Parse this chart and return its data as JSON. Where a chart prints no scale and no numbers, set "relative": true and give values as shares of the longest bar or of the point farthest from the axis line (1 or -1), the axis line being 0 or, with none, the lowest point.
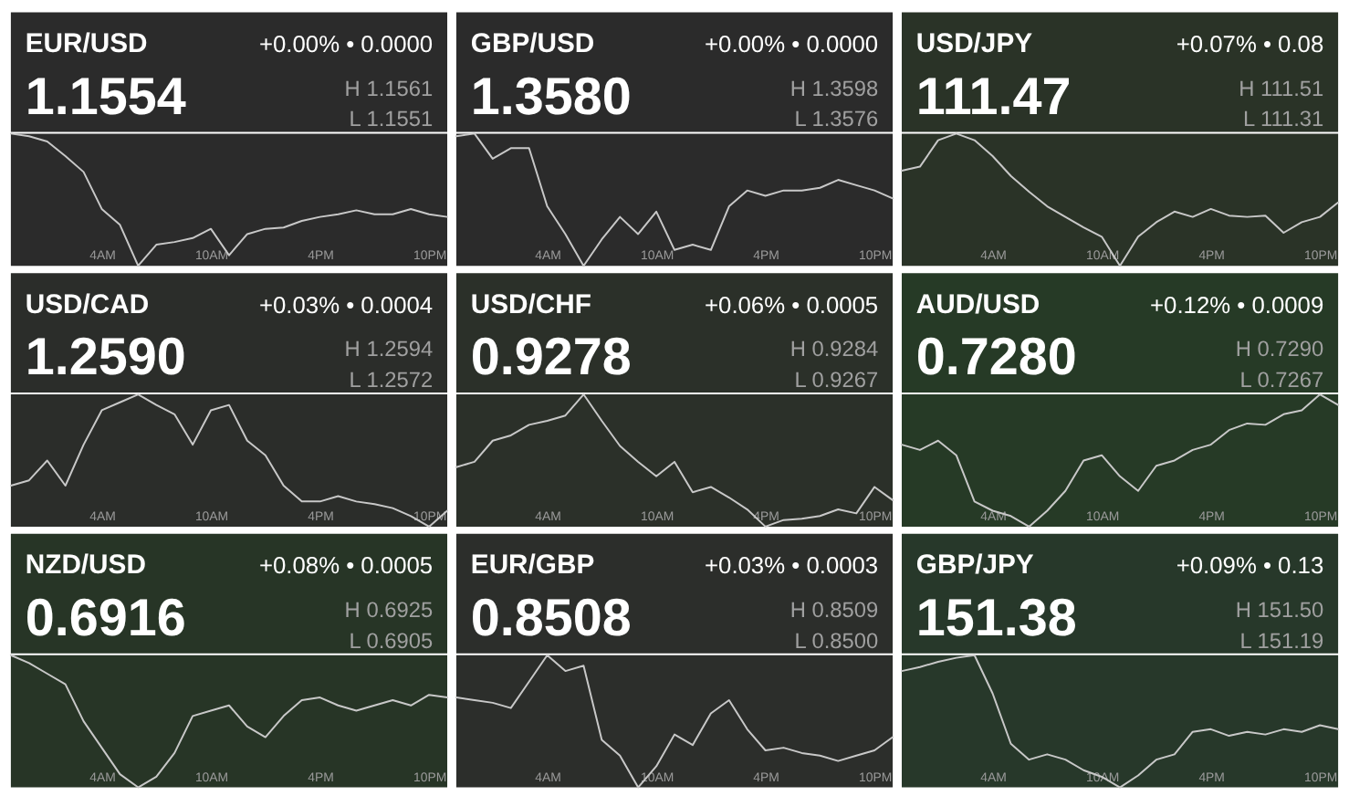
{
  "chart_data": [
    {
      "type": "line",
      "title": "EUR/USD",
      "annotations": [
        "+0.00% • 0.0000",
        "1.1554",
        "H 1.1561",
        "L 1.1551"
      ],
      "relative": true,
      "tick_labels": "x",
      "categories": [
        null,
        null,
        null,
        null,
        null,
        "4AM",
        null,
        null,
        null,
        null,
        null,
        "10AM",
        null,
        null,
        null,
        null,
        null,
        "4PM",
        null,
        null,
        null,
        null,
        null,
        "10PM",
        null
      ],
      "series": [
        {
          "color": "#c8c8c8",
          "values": [
            1.0,
            0.98,
            0.94,
            0.83,
            0.71,
            0.43,
            0.31,
            0.0,
            0.16,
            0.18,
            0.21,
            0.28,
            0.08,
            0.24,
            0.28,
            0.29,
            0.34,
            0.37,
            0.39,
            0.42,
            0.39,
            0.39,
            0.43,
            0.39,
            0.37
          ]
        }
      ]
    },
    {
      "type": "line",
      "title": "GBP/USD",
      "annotations": [
        "+0.00% • 0.0000",
        "1.3580",
        "H 1.3598",
        "L 1.3576"
      ],
      "relative": true,
      "tick_labels": "x",
      "categories": [
        null,
        null,
        null,
        null,
        null,
        "4AM",
        null,
        null,
        null,
        null,
        null,
        "10AM",
        null,
        null,
        null,
        null,
        null,
        "4PM",
        null,
        null,
        null,
        null,
        null,
        "10PM",
        null
      ],
      "series": [
        {
          "color": "#c8c8c8",
          "values": [
            0.98,
            1.0,
            0.81,
            0.89,
            0.89,
            0.45,
            0.24,
            0.0,
            0.2,
            0.37,
            0.24,
            0.41,
            0.12,
            0.16,
            0.12,
            0.45,
            0.57,
            0.53,
            0.57,
            0.57,
            0.59,
            0.65,
            0.61,
            0.57,
            0.51
          ]
        }
      ]
    },
    {
      "type": "line",
      "title": "USD/JPY",
      "annotations": [
        "+0.07% • 0.08",
        "111.47",
        "H 111.51",
        "L 111.31"
      ],
      "relative": true,
      "tick_labels": "x",
      "categories": [
        null,
        null,
        null,
        null,
        null,
        "4AM",
        null,
        null,
        null,
        null,
        null,
        "10AM",
        null,
        null,
        null,
        null,
        null,
        "4PM",
        null,
        null,
        null,
        null,
        null,
        "10PM",
        null
      ],
      "series": [
        {
          "color": "#c8c8c8",
          "values": [
            0.72,
            0.75,
            0.95,
            1.0,
            0.95,
            0.83,
            0.68,
            0.56,
            0.45,
            0.37,
            0.29,
            0.22,
            0.0,
            0.22,
            0.33,
            0.41,
            0.37,
            0.43,
            0.38,
            0.37,
            0.38,
            0.25,
            0.33,
            0.37,
            0.48
          ]
        }
      ]
    },
    {
      "type": "line",
      "title": "USD/CAD",
      "annotations": [
        "+0.03% • 0.0004",
        "1.2590",
        "H 1.2594",
        "L 1.2572"
      ],
      "relative": true,
      "tick_labels": "x",
      "categories": [
        null,
        null,
        null,
        null,
        null,
        "4AM",
        null,
        null,
        null,
        null,
        null,
        "10AM",
        null,
        null,
        null,
        null,
        null,
        "4PM",
        null,
        null,
        null,
        null,
        null,
        "10PM",
        null
      ],
      "series": [
        {
          "color": "#c8c8c8",
          "values": [
            0.31,
            0.35,
            0.5,
            0.31,
            0.62,
            0.88,
            0.94,
            1.0,
            0.92,
            0.85,
            0.62,
            0.88,
            0.92,
            0.65,
            0.54,
            0.31,
            0.19,
            0.19,
            0.23,
            0.19,
            0.17,
            0.14,
            0.08,
            0.0,
            0.12
          ]
        }
      ]
    },
    {
      "type": "line",
      "title": "USD/CHF",
      "annotations": [
        "+0.06% • 0.0005",
        "0.9278",
        "H 0.9284",
        "L 0.9267"
      ],
      "relative": true,
      "tick_labels": "x",
      "categories": [
        null,
        null,
        null,
        null,
        null,
        "4AM",
        null,
        null,
        null,
        null,
        null,
        "10AM",
        null,
        null,
        null,
        null,
        null,
        "4PM",
        null,
        null,
        null,
        null,
        null,
        "10PM",
        null
      ],
      "series": [
        {
          "color": "#c8c8c8",
          "values": [
            0.45,
            0.49,
            0.65,
            0.69,
            0.77,
            0.8,
            0.84,
            1.0,
            0.8,
            0.61,
            0.49,
            0.38,
            0.49,
            0.26,
            0.3,
            0.22,
            0.13,
            0.0,
            0.05,
            0.06,
            0.08,
            0.13,
            0.1,
            0.3,
            0.2
          ]
        }
      ]
    },
    {
      "type": "line",
      "title": "AUD/USD",
      "annotations": [
        "+0.12% • 0.0009",
        "0.7280",
        "H 0.7290",
        "L 0.7267"
      ],
      "relative": true,
      "tick_labels": "x",
      "categories": [
        null,
        null,
        null,
        null,
        null,
        "4AM",
        null,
        null,
        null,
        null,
        null,
        "10AM",
        null,
        null,
        null,
        null,
        null,
        "4PM",
        null,
        null,
        null,
        null,
        null,
        "10PM",
        null
      ],
      "series": [
        {
          "color": "#c8c8c8",
          "values": [
            0.62,
            0.58,
            0.65,
            0.54,
            0.19,
            0.12,
            0.08,
            0.0,
            0.12,
            0.27,
            0.5,
            0.54,
            0.38,
            0.27,
            0.46,
            0.5,
            0.58,
            0.62,
            0.73,
            0.78,
            0.77,
            0.85,
            0.88,
            1.0,
            0.92
          ]
        }
      ]
    },
    {
      "type": "line",
      "title": "NZD/USD",
      "annotations": [
        "+0.08% • 0.0005",
        "0.6916",
        "H 0.6925",
        "L 0.6905"
      ],
      "relative": true,
      "tick_labels": "x",
      "categories": [
        null,
        null,
        null,
        null,
        null,
        "4AM",
        null,
        null,
        null,
        null,
        null,
        "10AM",
        null,
        null,
        null,
        null,
        null,
        "4PM",
        null,
        null,
        null,
        null,
        null,
        "10PM",
        null
      ],
      "series": [
        {
          "color": "#c8c8c8",
          "values": [
            1.0,
            0.94,
            0.86,
            0.78,
            0.5,
            0.3,
            0.1,
            0.0,
            0.08,
            0.26,
            0.54,
            0.58,
            0.62,
            0.46,
            0.38,
            0.54,
            0.66,
            0.68,
            0.62,
            0.58,
            0.62,
            0.66,
            0.62,
            0.7,
            0.68
          ]
        }
      ]
    },
    {
      "type": "line",
      "title": "EUR/GBP",
      "annotations": [
        "+0.03% • 0.0003",
        "0.8508",
        "H 0.8509",
        "L 0.8500"
      ],
      "relative": true,
      "tick_labels": "x",
      "categories": [
        null,
        null,
        null,
        null,
        null,
        "4AM",
        null,
        null,
        null,
        null,
        null,
        "10AM",
        null,
        null,
        null,
        null,
        null,
        "4PM",
        null,
        null,
        null,
        null,
        null,
        "10PM",
        null
      ],
      "series": [
        {
          "color": "#c8c8c8",
          "values": [
            0.68,
            0.66,
            0.64,
            0.6,
            0.8,
            1.0,
            0.88,
            0.92,
            0.36,
            0.24,
            0.0,
            0.16,
            0.4,
            0.32,
            0.56,
            0.66,
            0.44,
            0.28,
            0.3,
            0.26,
            0.24,
            0.2,
            0.24,
            0.28,
            0.38
          ]
        }
      ]
    },
    {
      "type": "line",
      "title": "GBP/JPY",
      "annotations": [
        "+0.09% • 0.13",
        "151.38",
        "H 151.50",
        "L 151.19"
      ],
      "relative": true,
      "tick_labels": "x",
      "categories": [
        null,
        null,
        null,
        null,
        null,
        "4AM",
        null,
        null,
        null,
        null,
        null,
        "10AM",
        null,
        null,
        null,
        null,
        null,
        "4PM",
        null,
        null,
        null,
        null,
        null,
        "10PM",
        null
      ],
      "series": [
        {
          "color": "#c8c8c8",
          "values": [
            0.88,
            0.91,
            0.95,
            0.98,
            1.0,
            0.71,
            0.33,
            0.21,
            0.25,
            0.21,
            0.13,
            0.08,
            0.0,
            0.09,
            0.21,
            0.25,
            0.42,
            0.44,
            0.39,
            0.42,
            0.4,
            0.44,
            0.42,
            0.47,
            0.44
          ]
        }
      ]
    }
  ]
}
